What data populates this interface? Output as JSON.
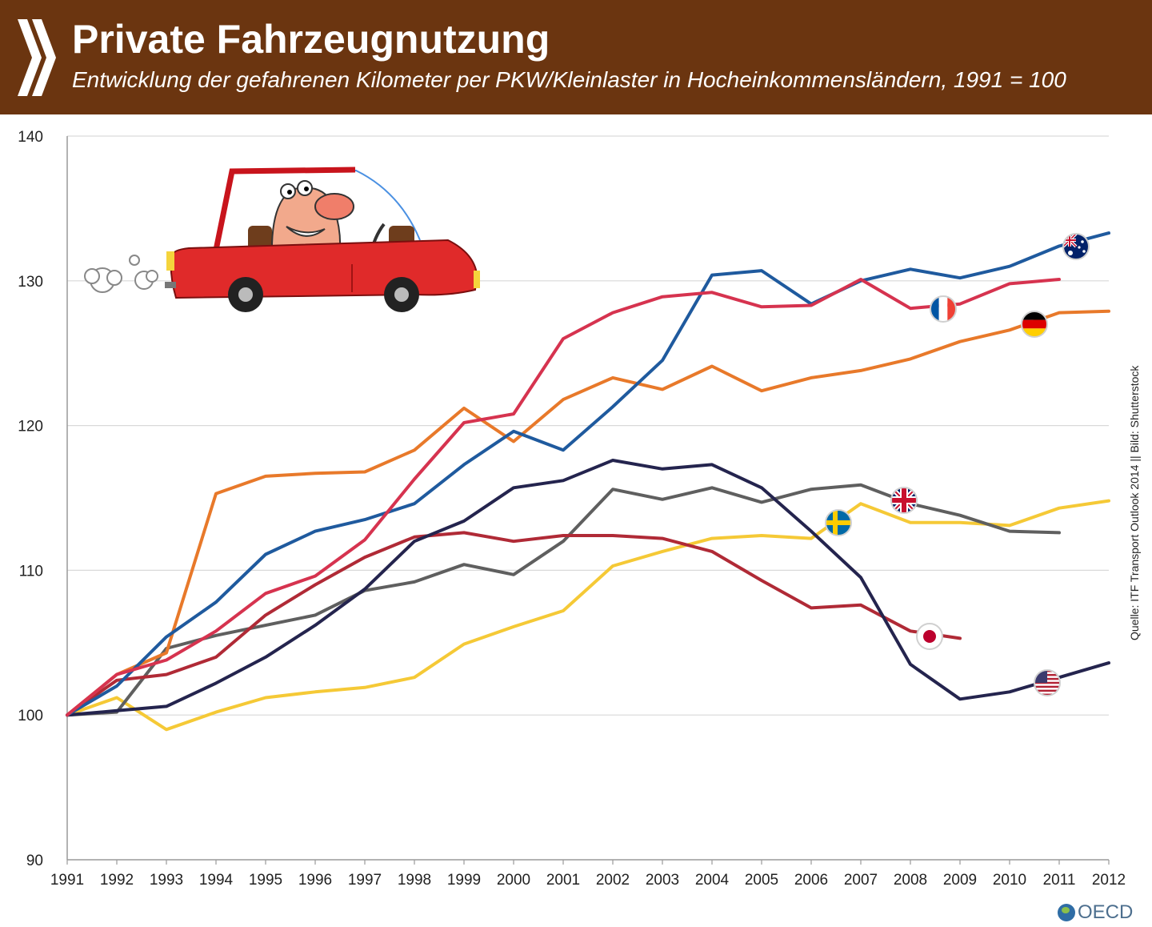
{
  "header": {
    "title": "Private Fahrzeugnutzung",
    "subtitle": "Entwicklung der gefahrenen Kilometer per PKW/Kleinlaster in Hocheinkommensländern, 1991 = 100"
  },
  "source": "Quelle: ITF Transport Outlook 2014 || Bild: Shutterstock",
  "branding": {
    "logo_text": "OECD",
    "logo_icon": "globe-icon",
    "chevron_icon": "double-chevron-icon"
  },
  "illustration": {
    "icon": "car-driver-illustration"
  },
  "colors": {
    "header_bg": "#6b3510"
  },
  "chart_data": {
    "type": "line",
    "title": "",
    "xlabel": "",
    "ylabel": "",
    "x": [
      "1991",
      "1992",
      "1993",
      "1994",
      "1995",
      "1996",
      "1997",
      "1998",
      "1999",
      "2000",
      "2001",
      "2002",
      "2003",
      "2004",
      "2005",
      "2006",
      "2007",
      "2008",
      "2009",
      "2010",
      "2011",
      "2012"
    ],
    "ylim": [
      90,
      140
    ],
    "yticks": [
      90,
      100,
      110,
      120,
      130,
      140
    ],
    "grid": true,
    "legend": "flag markers at line ends",
    "series": [
      {
        "flag": "australia-flag-icon",
        "color": "#1f5a9e",
        "values": [
          100,
          102,
          105.4,
          107.8,
          111.1,
          112.7,
          113.5,
          114.6,
          117.3,
          119.6,
          118.3,
          121.3,
          124.5,
          130.4,
          130.7,
          128.4,
          130,
          130.8,
          130.2,
          131,
          132.4,
          133.3
        ]
      },
      {
        "flag": "france-flag-icon",
        "color": "#d6334f",
        "values": [
          100,
          102.8,
          103.8,
          105.8,
          108.4,
          109.6,
          112.1,
          116.3,
          120.2,
          120.8,
          126,
          127.8,
          128.9,
          129.2,
          128.2,
          128.3,
          130.1,
          128.1,
          128.4,
          129.8,
          130.1,
          null
        ]
      },
      {
        "flag": "germany-flag-icon",
        "color": "#e8792a",
        "values": [
          100,
          102.8,
          104.3,
          115.3,
          116.5,
          116.7,
          116.8,
          118.3,
          121.2,
          118.9,
          121.8,
          123.3,
          122.5,
          124.1,
          122.4,
          123.3,
          123.8,
          124.6,
          125.8,
          126.6,
          127.8,
          127.9
        ]
      },
      {
        "flag": "uk-flag-icon",
        "color": "#5f5f5f",
        "values": [
          100,
          100.2,
          104.6,
          105.5,
          106.2,
          106.9,
          108.6,
          109.2,
          110.4,
          109.7,
          112,
          115.6,
          114.9,
          115.7,
          114.7,
          115.6,
          115.9,
          114.6,
          113.8,
          112.7,
          112.6,
          null
        ]
      },
      {
        "flag": "sweden-flag-icon",
        "color": "#f5c936",
        "values": [
          100,
          101.2,
          99,
          100.2,
          101.2,
          101.6,
          101.9,
          102.6,
          104.9,
          106.1,
          107.2,
          110.3,
          111.3,
          112.2,
          112.4,
          112.2,
          114.6,
          113.3,
          113.3,
          113.1,
          114.3,
          114.8
        ]
      },
      {
        "flag": "japan-flag-icon",
        "color": "#b02a36",
        "values": [
          100,
          102.4,
          102.8,
          104,
          106.9,
          109,
          110.9,
          112.3,
          112.6,
          112,
          112.4,
          112.4,
          112.2,
          111.3,
          109.3,
          107.4,
          107.6,
          105.8,
          105.3,
          null,
          null,
          null
        ]
      },
      {
        "flag": "usa-flag-icon",
        "color": "#24244e",
        "values": [
          100,
          100.3,
          100.6,
          102.2,
          104,
          106.2,
          108.7,
          112,
          113.4,
          115.7,
          116.2,
          117.6,
          117,
          117.3,
          115.7,
          112.7,
          109.5,
          103.5,
          101.1,
          101.6,
          102.6,
          103.6
        ]
      }
    ]
  }
}
